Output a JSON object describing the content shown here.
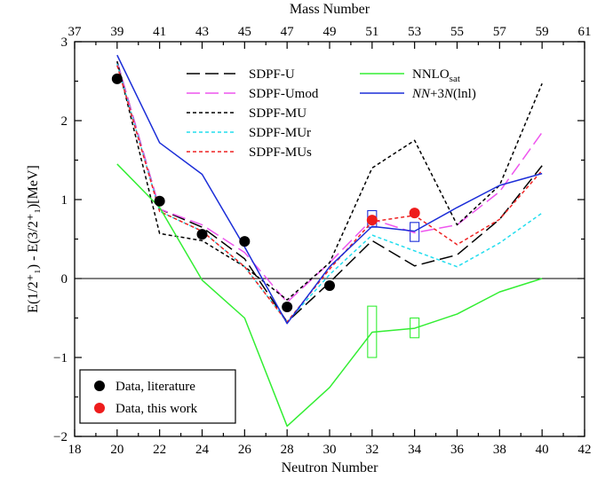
{
  "chart_data": {
    "type": "line",
    "xlabel": "Neutron Number",
    "x2label": "Mass Number",
    "ylabel": "E(1/2⁺₁) - E(3/2⁺₁)[MeV]",
    "xlim": [
      18,
      42
    ],
    "ylim": [
      -2,
      3
    ],
    "xticks": [
      18,
      20,
      22,
      24,
      26,
      28,
      30,
      32,
      34,
      36,
      38,
      40,
      42
    ],
    "x2ticks": [
      37,
      39,
      41,
      43,
      45,
      47,
      49,
      51,
      53,
      55,
      57,
      59,
      61
    ],
    "yticks": [
      -2,
      -1,
      0,
      1,
      2,
      3
    ],
    "zero_line": true,
    "grid": false,
    "legend_placement": "top",
    "lower_legend_placement": "bottom-left",
    "series": [
      {
        "name": "SDPF-U",
        "color": "#000000",
        "dash": "long",
        "x": [
          20,
          22,
          24,
          26,
          28,
          30,
          32,
          34,
          36,
          38,
          40
        ],
        "y": [
          2.75,
          0.88,
          0.65,
          0.25,
          -0.55,
          -0.05,
          0.48,
          0.16,
          0.3,
          0.75,
          1.43
        ]
      },
      {
        "name": "SDPF-Umod",
        "color": "#ee55ee",
        "dash": "long",
        "x": [
          20,
          22,
          24,
          26,
          28,
          30,
          32,
          34,
          36,
          38,
          40
        ],
        "y": [
          2.75,
          0.88,
          0.68,
          0.33,
          -0.3,
          0.2,
          0.75,
          0.58,
          0.68,
          1.1,
          1.85
        ]
      },
      {
        "name": "SDPF-MU",
        "color": "#000000",
        "dash": "short",
        "x": [
          20,
          22,
          24,
          26,
          28,
          30,
          32,
          34,
          36,
          38,
          40
        ],
        "y": [
          2.75,
          0.57,
          0.48,
          0.15,
          -0.27,
          0.2,
          1.4,
          1.75,
          0.68,
          1.18,
          2.47
        ]
      },
      {
        "name": "SDPF-MUr",
        "color": "#22ddee",
        "dash": "short",
        "x": [
          20,
          22,
          24,
          26,
          28,
          30,
          32,
          34,
          36,
          38,
          40
        ],
        "y": [
          2.72,
          0.85,
          0.6,
          0.15,
          -0.55,
          0.05,
          0.55,
          0.35,
          0.15,
          0.45,
          0.83
        ]
      },
      {
        "name": "SDPF-MUs",
        "color": "#ee2222",
        "dash": "short",
        "x": [
          20,
          22,
          24,
          26,
          28,
          30,
          32,
          34,
          36,
          38,
          40
        ],
        "y": [
          2.7,
          0.85,
          0.6,
          0.15,
          -0.55,
          0.12,
          0.72,
          0.8,
          0.43,
          0.75,
          1.37
        ]
      },
      {
        "name": "NNLO",
        "name_sub": "sat",
        "color": "#33ee33",
        "dash": "solid",
        "x": [
          20,
          22,
          24,
          26,
          28,
          30,
          32,
          34,
          36,
          38,
          40
        ],
        "y": [
          1.45,
          0.9,
          -0.02,
          -0.5,
          -1.87,
          -1.38,
          -0.68,
          -0.63,
          -0.45,
          -0.17,
          0.0
        ]
      },
      {
        "name": "NN+3N(lnl)",
        "color": "#1c2ed8",
        "dash": "solid",
        "x": [
          20,
          22,
          24,
          26,
          28,
          30,
          32,
          34,
          36,
          38,
          40
        ],
        "y": [
          2.83,
          1.72,
          1.32,
          0.4,
          -0.57,
          0.15,
          0.66,
          0.6,
          0.9,
          1.18,
          1.33
        ]
      }
    ],
    "uncertainty_boxes": [
      {
        "series": "NN+3N(lnl)",
        "color": "#1c2ed8",
        "x": 32,
        "y_range": [
          0.65,
          0.86
        ]
      },
      {
        "series": "NN+3N(lnl)",
        "color": "#1c2ed8",
        "x": 34,
        "y_range": [
          0.47,
          0.71
        ]
      },
      {
        "series": "NNLO",
        "color": "#33ee33",
        "x": 32,
        "y_range": [
          -1.0,
          -0.35
        ]
      },
      {
        "series": "NNLO",
        "color": "#33ee33",
        "x": 34,
        "y_range": [
          -0.75,
          -0.5
        ]
      }
    ],
    "data_points": [
      {
        "name": "Data, literature",
        "color": "#000000",
        "x": [
          20,
          22,
          24,
          26,
          28,
          30
        ],
        "y": [
          2.53,
          0.98,
          0.56,
          0.47,
          -0.36,
          -0.09
        ]
      },
      {
        "name": "Data, this work",
        "color": "#ee1c1c",
        "x": [
          32,
          34
        ],
        "y": [
          0.74,
          0.83
        ]
      }
    ]
  }
}
